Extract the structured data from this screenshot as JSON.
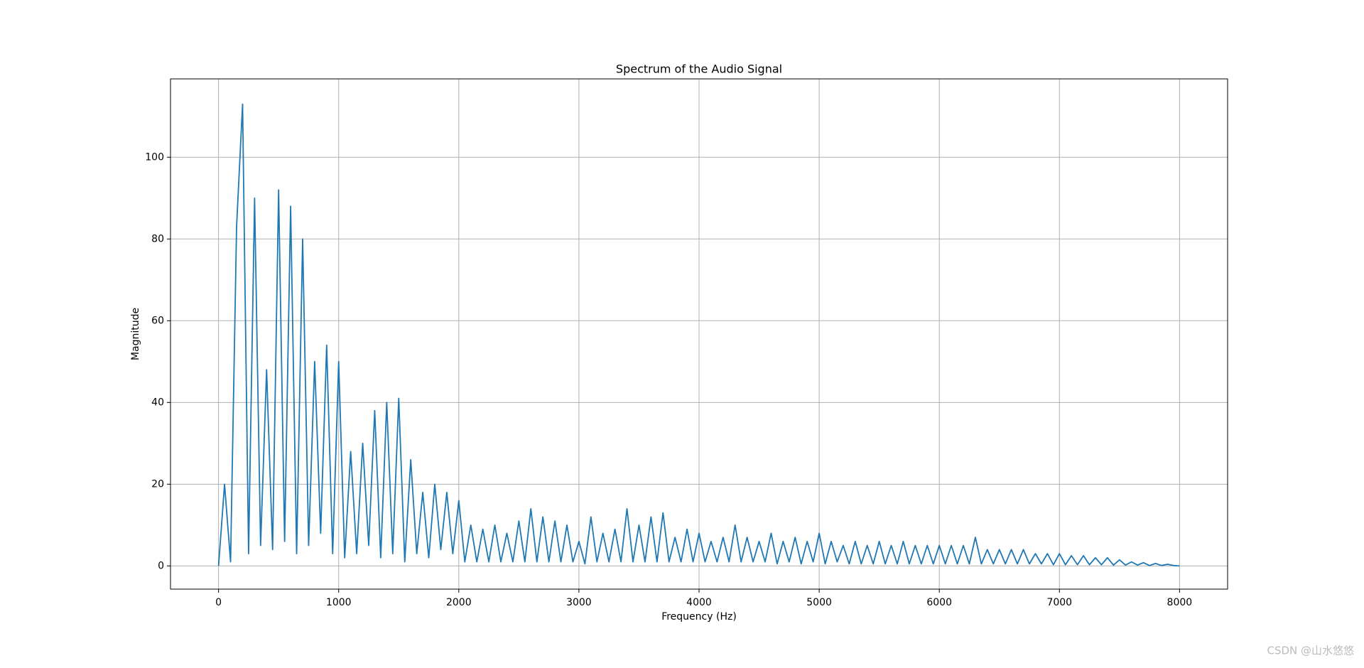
{
  "chart_data": {
    "type": "line",
    "title": "Spectrum of the Audio Signal",
    "x_label": "Frequency (Hz)",
    "y_label": "Magnitude",
    "watermark": "CSDN @山水悠悠",
    "x": [
      0,
      50,
      100,
      150,
      200,
      250,
      300,
      350,
      400,
      450,
      500,
      550,
      600,
      650,
      700,
      750,
      800,
      850,
      900,
      950,
      1000,
      1050,
      1100,
      1150,
      1200,
      1250,
      1300,
      1350,
      1400,
      1450,
      1500,
      1550,
      1600,
      1650,
      1700,
      1750,
      1800,
      1850,
      1900,
      1950,
      2000,
      2050,
      2100,
      2150,
      2200,
      2250,
      2300,
      2350,
      2400,
      2450,
      2500,
      2550,
      2600,
      2650,
      2700,
      2750,
      2800,
      2850,
      2900,
      2950,
      3000,
      3050,
      3100,
      3150,
      3200,
      3250,
      3300,
      3350,
      3400,
      3450,
      3500,
      3550,
      3600,
      3650,
      3700,
      3750,
      3800,
      3850,
      3900,
      3950,
      4000,
      4050,
      4100,
      4150,
      4200,
      4250,
      4300,
      4350,
      4400,
      4450,
      4500,
      4550,
      4600,
      4650,
      4700,
      4750,
      4800,
      4850,
      4900,
      4950,
      5000,
      5050,
      5100,
      5150,
      5200,
      5250,
      5300,
      5350,
      5400,
      5450,
      5500,
      5550,
      5600,
      5650,
      5700,
      5750,
      5800,
      5850,
      5900,
      5950,
      6000,
      6050,
      6100,
      6150,
      6200,
      6250,
      6300,
      6350,
      6400,
      6450,
      6500,
      6550,
      6600,
      6650,
      6700,
      6750,
      6800,
      6850,
      6900,
      6950,
      7000,
      7050,
      7100,
      7150,
      7200,
      7250,
      7300,
      7350,
      7400,
      7450,
      7500,
      7550,
      7600,
      7650,
      7700,
      7750,
      7800,
      7850,
      7900,
      7950,
      8000
    ],
    "series": [
      {
        "name": "Magnitude",
        "color": "#1f77b4",
        "values": [
          0,
          20,
          1,
          83,
          113,
          3,
          90,
          5,
          48,
          4,
          92,
          6,
          88,
          3,
          80,
          5,
          50,
          8,
          54,
          3,
          50,
          2,
          28,
          3,
          30,
          5,
          38,
          2,
          40,
          3,
          41,
          1,
          26,
          3,
          18,
          2,
          20,
          4,
          18,
          3,
          16,
          1,
          10,
          1,
          9,
          1,
          10,
          1,
          8,
          1,
          11,
          1,
          14,
          1,
          12,
          1,
          11,
          1,
          10,
          1,
          6,
          0.5,
          12,
          1,
          8,
          1,
          9,
          1,
          14,
          1,
          10,
          1,
          12,
          1,
          13,
          1,
          7,
          1,
          9,
          1,
          8,
          1,
          6,
          1,
          7,
          1,
          10,
          1,
          7,
          1,
          6,
          1,
          8,
          0.5,
          6,
          1,
          7,
          0.5,
          6,
          1,
          8,
          0.5,
          6,
          1,
          5,
          0.5,
          6,
          0.5,
          5,
          0.5,
          6,
          0.5,
          5,
          0.5,
          6,
          0.5,
          5,
          0.5,
          5,
          0.5,
          5,
          0.5,
          5,
          0.5,
          5,
          0.5,
          7,
          0.5,
          4,
          0.5,
          4,
          0.5,
          4,
          0.5,
          4,
          0.5,
          3,
          0.5,
          3,
          0.3,
          3,
          0.3,
          2.5,
          0.3,
          2.5,
          0.3,
          2,
          0.3,
          2,
          0.2,
          1.5,
          0.2,
          1,
          0.2,
          0.8,
          0.1,
          0.6,
          0.1,
          0.4,
          0.1,
          0
        ]
      }
    ],
    "xlim": [
      -400,
      8400
    ],
    "ylim": [
      -5.675,
      119.175
    ],
    "xticks": [
      0,
      1000,
      2000,
      3000,
      4000,
      5000,
      6000,
      7000,
      8000
    ],
    "yticks": [
      0,
      20,
      40,
      60,
      80,
      100
    ],
    "grid": true
  }
}
